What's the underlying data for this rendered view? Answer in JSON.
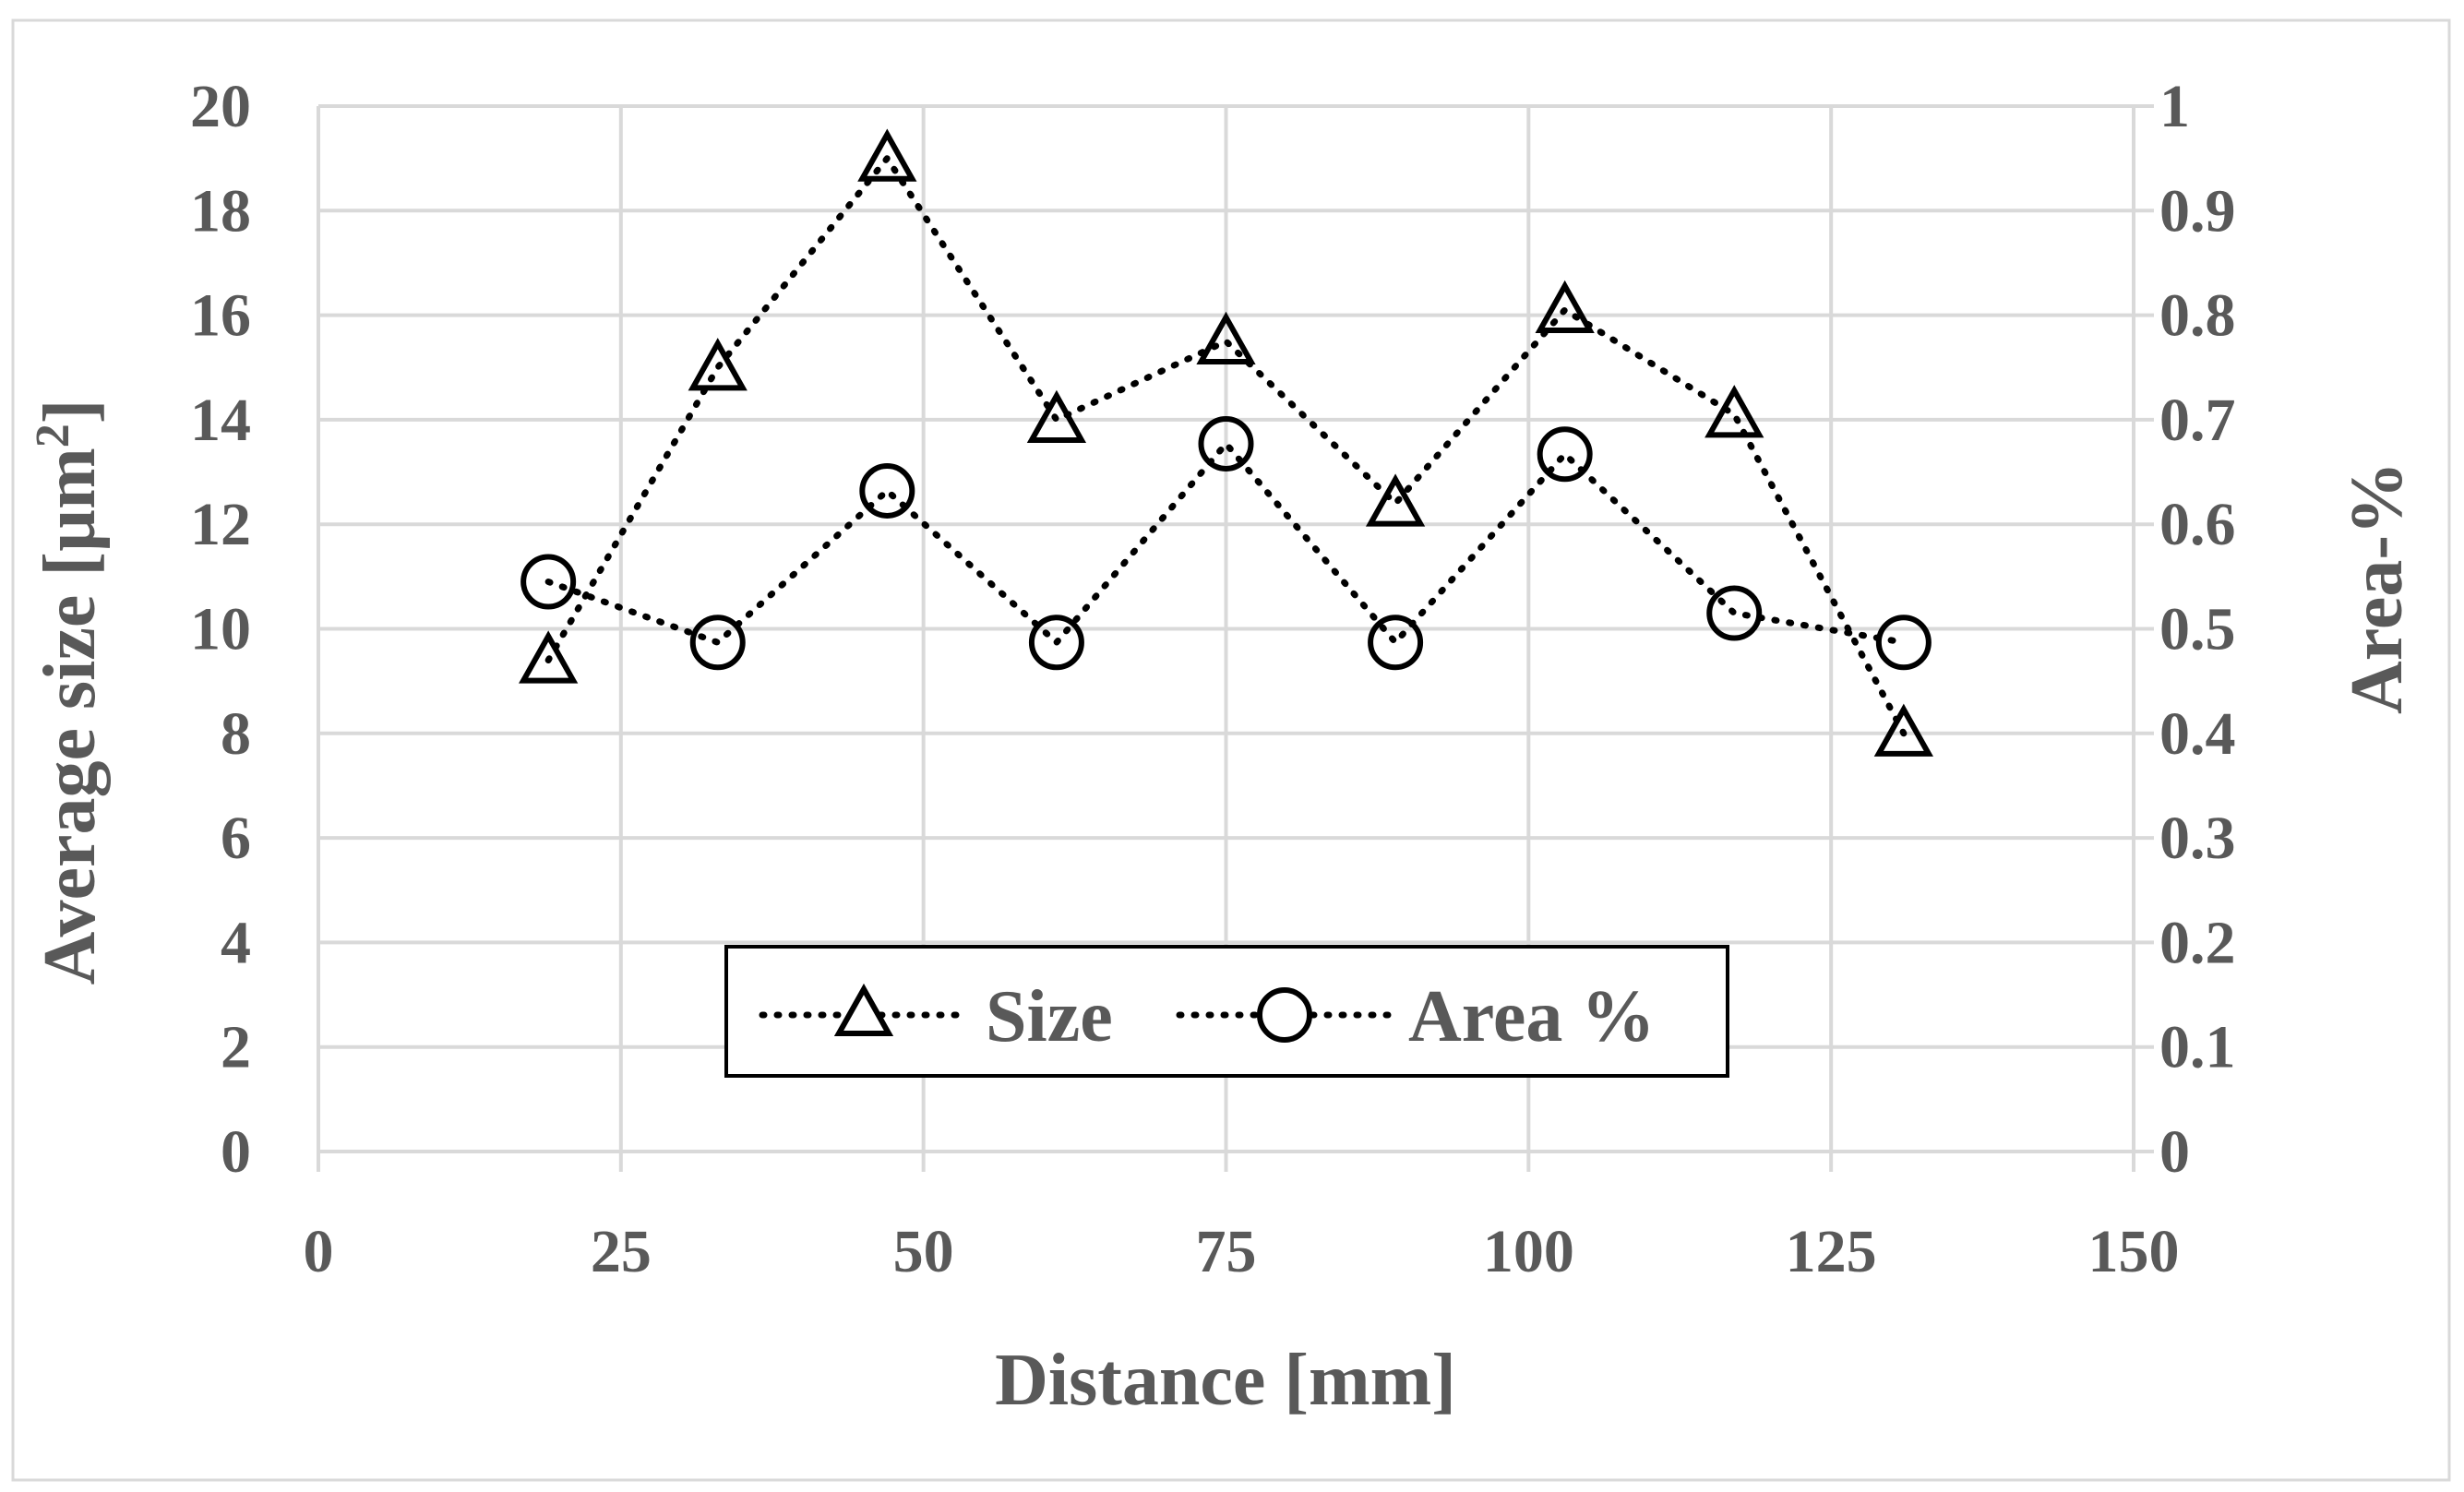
{
  "chart_data": {
    "type": "line",
    "xlabel": "Distance [mm]",
    "ylabel": "Average size [µm",
    "ylabel_sup": "2",
    "ylabel_close": "]",
    "y2label": "Area-%",
    "xlim": [
      0,
      150
    ],
    "ylim": [
      0,
      20
    ],
    "y2lim": [
      0,
      1
    ],
    "xticks": [
      "0",
      "25",
      "50",
      "75",
      "100",
      "125",
      "150"
    ],
    "yticks": [
      "0",
      "2",
      "4",
      "6",
      "8",
      "10",
      "12",
      "14",
      "16",
      "18",
      "20"
    ],
    "y2ticks": [
      "0",
      "0.1",
      "0.2",
      "0.3",
      "0.4",
      "0.5",
      "0.6",
      "0.7",
      "0.8",
      "0.9",
      "1"
    ],
    "grid": true,
    "legend_position": "bottom-center",
    "series": [
      {
        "name": "Size",
        "axis": "left",
        "marker": "triangle",
        "line_style": "dotted",
        "x": [
          19,
          33,
          47,
          61,
          75,
          89,
          103,
          117,
          131
        ],
        "y": [
          9.4,
          15.0,
          19.0,
          14.0,
          15.5,
          12.4,
          16.1,
          14.1,
          8.0
        ]
      },
      {
        "name": "Area %",
        "axis": "right",
        "marker": "circle",
        "line_style": "dotted",
        "x": [
          19,
          33,
          47,
          61,
          75,
          89,
          103,
          117,
          131
        ],
        "y": [
          0.545,
          0.487,
          0.632,
          0.487,
          0.677,
          0.487,
          0.667,
          0.515,
          0.487
        ]
      }
    ],
    "colors": {
      "text": "#595959",
      "grid": "#d9d9d9",
      "series": "#000000"
    }
  }
}
